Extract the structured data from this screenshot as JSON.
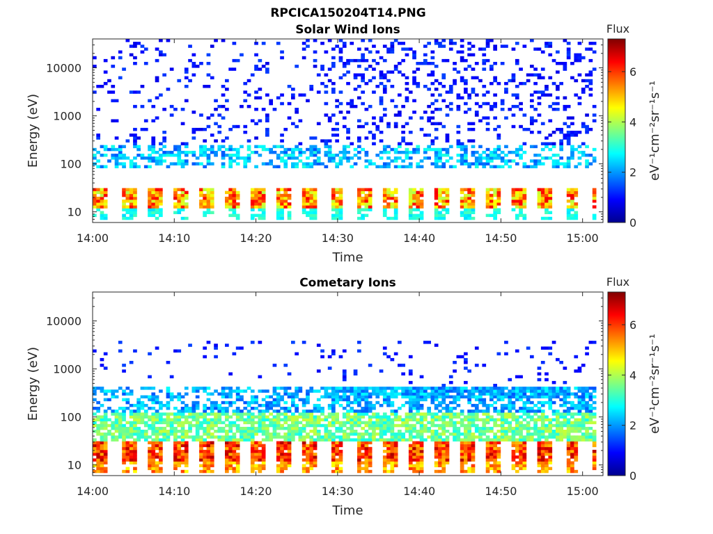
{
  "figure_title": "RPCICA150204T14.PNG",
  "colormap": [
    "#00008f",
    "#0000ff",
    "#0080ff",
    "#00ffff",
    "#80ff80",
    "#ffff00",
    "#ff8000",
    "#ff0000",
    "#800000"
  ],
  "chart_data": [
    {
      "type": "heatmap",
      "title": "Solar Wind Ions",
      "xlabel": "Time",
      "ylabel": "Energy (eV)",
      "x_unit": "minutes after 14:00",
      "xlim": [
        0,
        62.5
      ],
      "ylim": [
        6,
        40000
      ],
      "y_scale": "log",
      "x_ticks": [
        {
          "value": 0,
          "label": "14:00"
        },
        {
          "value": 10,
          "label": "14:10"
        },
        {
          "value": 20,
          "label": "14:20"
        },
        {
          "value": 30,
          "label": "14:30"
        },
        {
          "value": 40,
          "label": "14:40"
        },
        {
          "value": 50,
          "label": "14:50"
        },
        {
          "value": 60,
          "label": "15:00"
        }
      ],
      "y_ticks": [
        {
          "value": 10,
          "label": "10"
        },
        {
          "value": 100,
          "label": "100"
        },
        {
          "value": 1000,
          "label": "1000"
        },
        {
          "value": 10000,
          "label": "10000"
        }
      ],
      "colorbar": {
        "title": "Flux",
        "label": "eV⁻¹cm⁻²sr⁻¹s⁻¹",
        "range": [
          0,
          7.3
        ],
        "ticks": [
          {
            "value": 0,
            "label": "0"
          },
          {
            "value": 2,
            "label": "2"
          },
          {
            "value": 4,
            "label": "4"
          },
          {
            "value": 6,
            "label": "6"
          }
        ]
      },
      "bands": [
        {
          "e_min": 12,
          "e_max": 30,
          "flux_min": 4.0,
          "flux_max": 6.5,
          "pulsed": true,
          "density": 0.9
        },
        {
          "e_min": 7,
          "e_max": 12,
          "flux_min": 2.5,
          "flux_max": 3.3,
          "pulsed": true,
          "density": 0.6
        },
        {
          "e_min": 80,
          "e_max": 250,
          "flux_min": 1.5,
          "flux_max": 3.0,
          "pulsed": false,
          "density": 0.45
        },
        {
          "e_min": 250,
          "e_max": 40000,
          "flux_min": 0.7,
          "flux_max": 1.4,
          "pulsed": false,
          "density": 0.12
        }
      ]
    },
    {
      "type": "heatmap",
      "title": "Cometary Ions",
      "xlabel": "Time",
      "ylabel": "Energy (eV)",
      "x_unit": "minutes after 14:00",
      "xlim": [
        0,
        62.5
      ],
      "ylim": [
        6,
        40000
      ],
      "y_scale": "log",
      "x_ticks": [
        {
          "value": 0,
          "label": "14:00"
        },
        {
          "value": 10,
          "label": "14:10"
        },
        {
          "value": 20,
          "label": "14:20"
        },
        {
          "value": 30,
          "label": "14:30"
        },
        {
          "value": 40,
          "label": "14:40"
        },
        {
          "value": 50,
          "label": "14:50"
        },
        {
          "value": 60,
          "label": "15:00"
        }
      ],
      "y_ticks": [
        {
          "value": 10,
          "label": "10"
        },
        {
          "value": 100,
          "label": "100"
        },
        {
          "value": 1000,
          "label": "1000"
        },
        {
          "value": 10000,
          "label": "10000"
        }
      ],
      "colorbar": {
        "title": "Flux",
        "label": "eV⁻¹cm⁻²sr⁻¹s⁻¹",
        "range": [
          0,
          7.3
        ],
        "ticks": [
          {
            "value": 0,
            "label": "0"
          },
          {
            "value": 2,
            "label": "2"
          },
          {
            "value": 4,
            "label": "4"
          },
          {
            "value": 6,
            "label": "6"
          }
        ]
      },
      "bands": [
        {
          "e_min": 12,
          "e_max": 30,
          "flux_min": 5.0,
          "flux_max": 7.0,
          "pulsed": true,
          "density": 0.95
        },
        {
          "e_min": 7,
          "e_max": 12,
          "flux_min": 4.5,
          "flux_max": 6.0,
          "pulsed": true,
          "density": 0.8
        },
        {
          "e_min": 30,
          "e_max": 120,
          "flux_min": 2.8,
          "flux_max": 4.2,
          "pulsed": false,
          "density": 0.75
        },
        {
          "e_min": 120,
          "e_max": 400,
          "flux_min": 1.5,
          "flux_max": 2.8,
          "pulsed": false,
          "density": 0.55
        },
        {
          "e_min": 400,
          "e_max": 4000,
          "flux_min": 0.8,
          "flux_max": 1.4,
          "pulsed": false,
          "density": 0.05
        }
      ]
    }
  ]
}
